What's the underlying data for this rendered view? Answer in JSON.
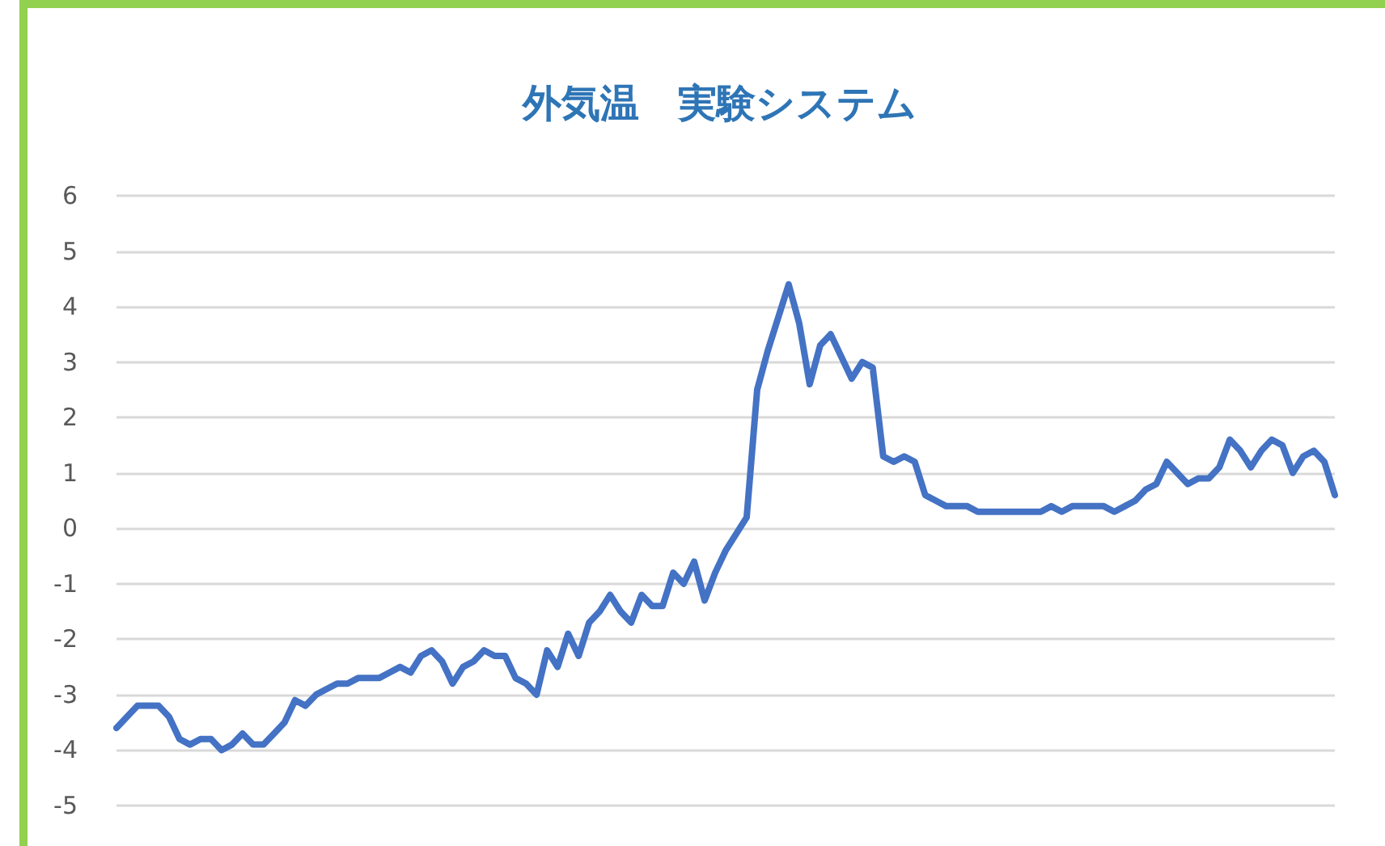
{
  "chart_data": {
    "type": "line",
    "title": "外気温　実験システム",
    "categories": [
      null,
      null,
      null,
      null,
      null,
      null,
      null,
      null,
      null,
      null,
      null,
      null,
      null,
      null,
      null,
      null,
      null,
      null,
      null,
      null,
      null,
      null,
      null,
      null,
      null,
      null,
      null,
      null,
      null,
      null,
      null,
      null,
      null,
      null,
      null,
      null,
      null,
      null,
      null,
      null,
      null,
      null,
      null,
      null,
      null,
      null,
      null,
      null,
      null,
      null,
      null,
      null,
      null,
      null,
      null,
      null,
      null,
      null,
      null,
      null,
      null,
      null,
      null,
      null,
      null,
      null,
      null,
      null,
      null,
      null,
      null,
      null,
      null,
      null,
      null,
      null,
      null,
      null,
      null,
      null,
      null,
      null,
      null,
      null,
      null,
      null,
      null,
      null,
      null,
      null,
      null,
      null,
      null,
      null,
      null,
      null,
      null,
      null,
      null,
      null,
      null,
      null,
      null,
      null,
      null,
      null,
      null,
      null,
      null,
      null,
      null,
      null,
      null,
      null,
      null,
      null,
      null
    ],
    "series": [
      {
        "color": "#4472c4",
        "values": [
          -3.6,
          -3.4,
          -3.2,
          -3.2,
          -3.2,
          -3.4,
          -3.8,
          -3.9,
          -3.8,
          -3.8,
          -4.0,
          -3.9,
          -3.7,
          -3.9,
          -3.9,
          -3.7,
          -3.5,
          -3.1,
          -3.2,
          -3.0,
          -2.9,
          -2.8,
          -2.8,
          -2.7,
          -2.7,
          -2.7,
          -2.6,
          -2.5,
          -2.6,
          -2.3,
          -2.2,
          -2.4,
          -2.8,
          -2.5,
          -2.4,
          -2.2,
          -2.3,
          -2.3,
          -2.7,
          -2.8,
          -3.0,
          -2.2,
          -2.5,
          -1.9,
          -2.3,
          -1.7,
          -1.5,
          -1.2,
          -1.5,
          -1.7,
          -1.2,
          -1.4,
          -1.4,
          -0.8,
          -1.0,
          -0.6,
          -1.3,
          -0.8,
          -0.4,
          -0.1,
          0.2,
          2.5,
          3.2,
          3.8,
          4.4,
          3.7,
          2.6,
          3.3,
          3.5,
          3.1,
          2.7,
          3.0,
          2.9,
          1.3,
          1.2,
          1.3,
          1.2,
          0.6,
          0.5,
          0.4,
          0.4,
          0.4,
          0.3,
          0.3,
          0.3,
          0.3,
          0.3,
          0.3,
          0.3,
          0.4,
          0.3,
          0.4,
          0.4,
          0.4,
          0.4,
          0.3,
          0.4,
          0.5,
          0.7,
          0.8,
          1.2,
          1.0,
          0.8,
          0.9,
          0.9,
          1.1,
          1.6,
          1.4,
          1.1,
          1.4,
          1.6,
          1.5,
          1.0,
          1.3,
          1.4,
          1.2,
          0.6
        ]
      }
    ],
    "ylim": [
      -5,
      6
    ],
    "yticks": [
      -5,
      -4,
      -3,
      -2,
      -1,
      0,
      1,
      2,
      3,
      4,
      5,
      6
    ],
    "grid": "y",
    "marker": "none",
    "line_style": "solid"
  }
}
